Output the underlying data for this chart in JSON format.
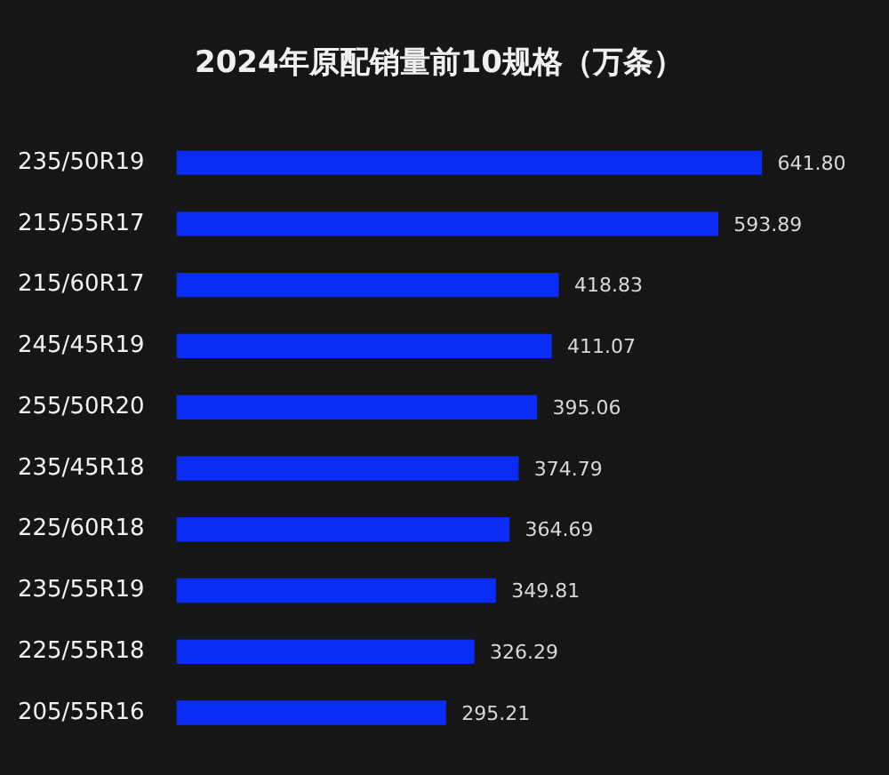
{
  "chart_data": {
    "type": "bar",
    "orientation": "horizontal",
    "title": "2024年原配销量前10规格（万条）",
    "categories": [
      "235/50R19",
      "215/55R17",
      "215/60R17",
      "245/45R19",
      "255/50R20",
      "235/45R18",
      "225/60R18",
      "235/55R19",
      "225/55R18",
      "205/55R16"
    ],
    "values": [
      641.8,
      593.89,
      418.83,
      411.07,
      395.06,
      374.79,
      364.69,
      349.81,
      326.29,
      295.21
    ],
    "value_labels": [
      "641.80",
      "593.89",
      "418.83",
      "411.07",
      "395.06",
      "374.79",
      "364.69",
      "349.81",
      "326.29",
      "295.21"
    ],
    "color": "#0a2cf5"
  }
}
